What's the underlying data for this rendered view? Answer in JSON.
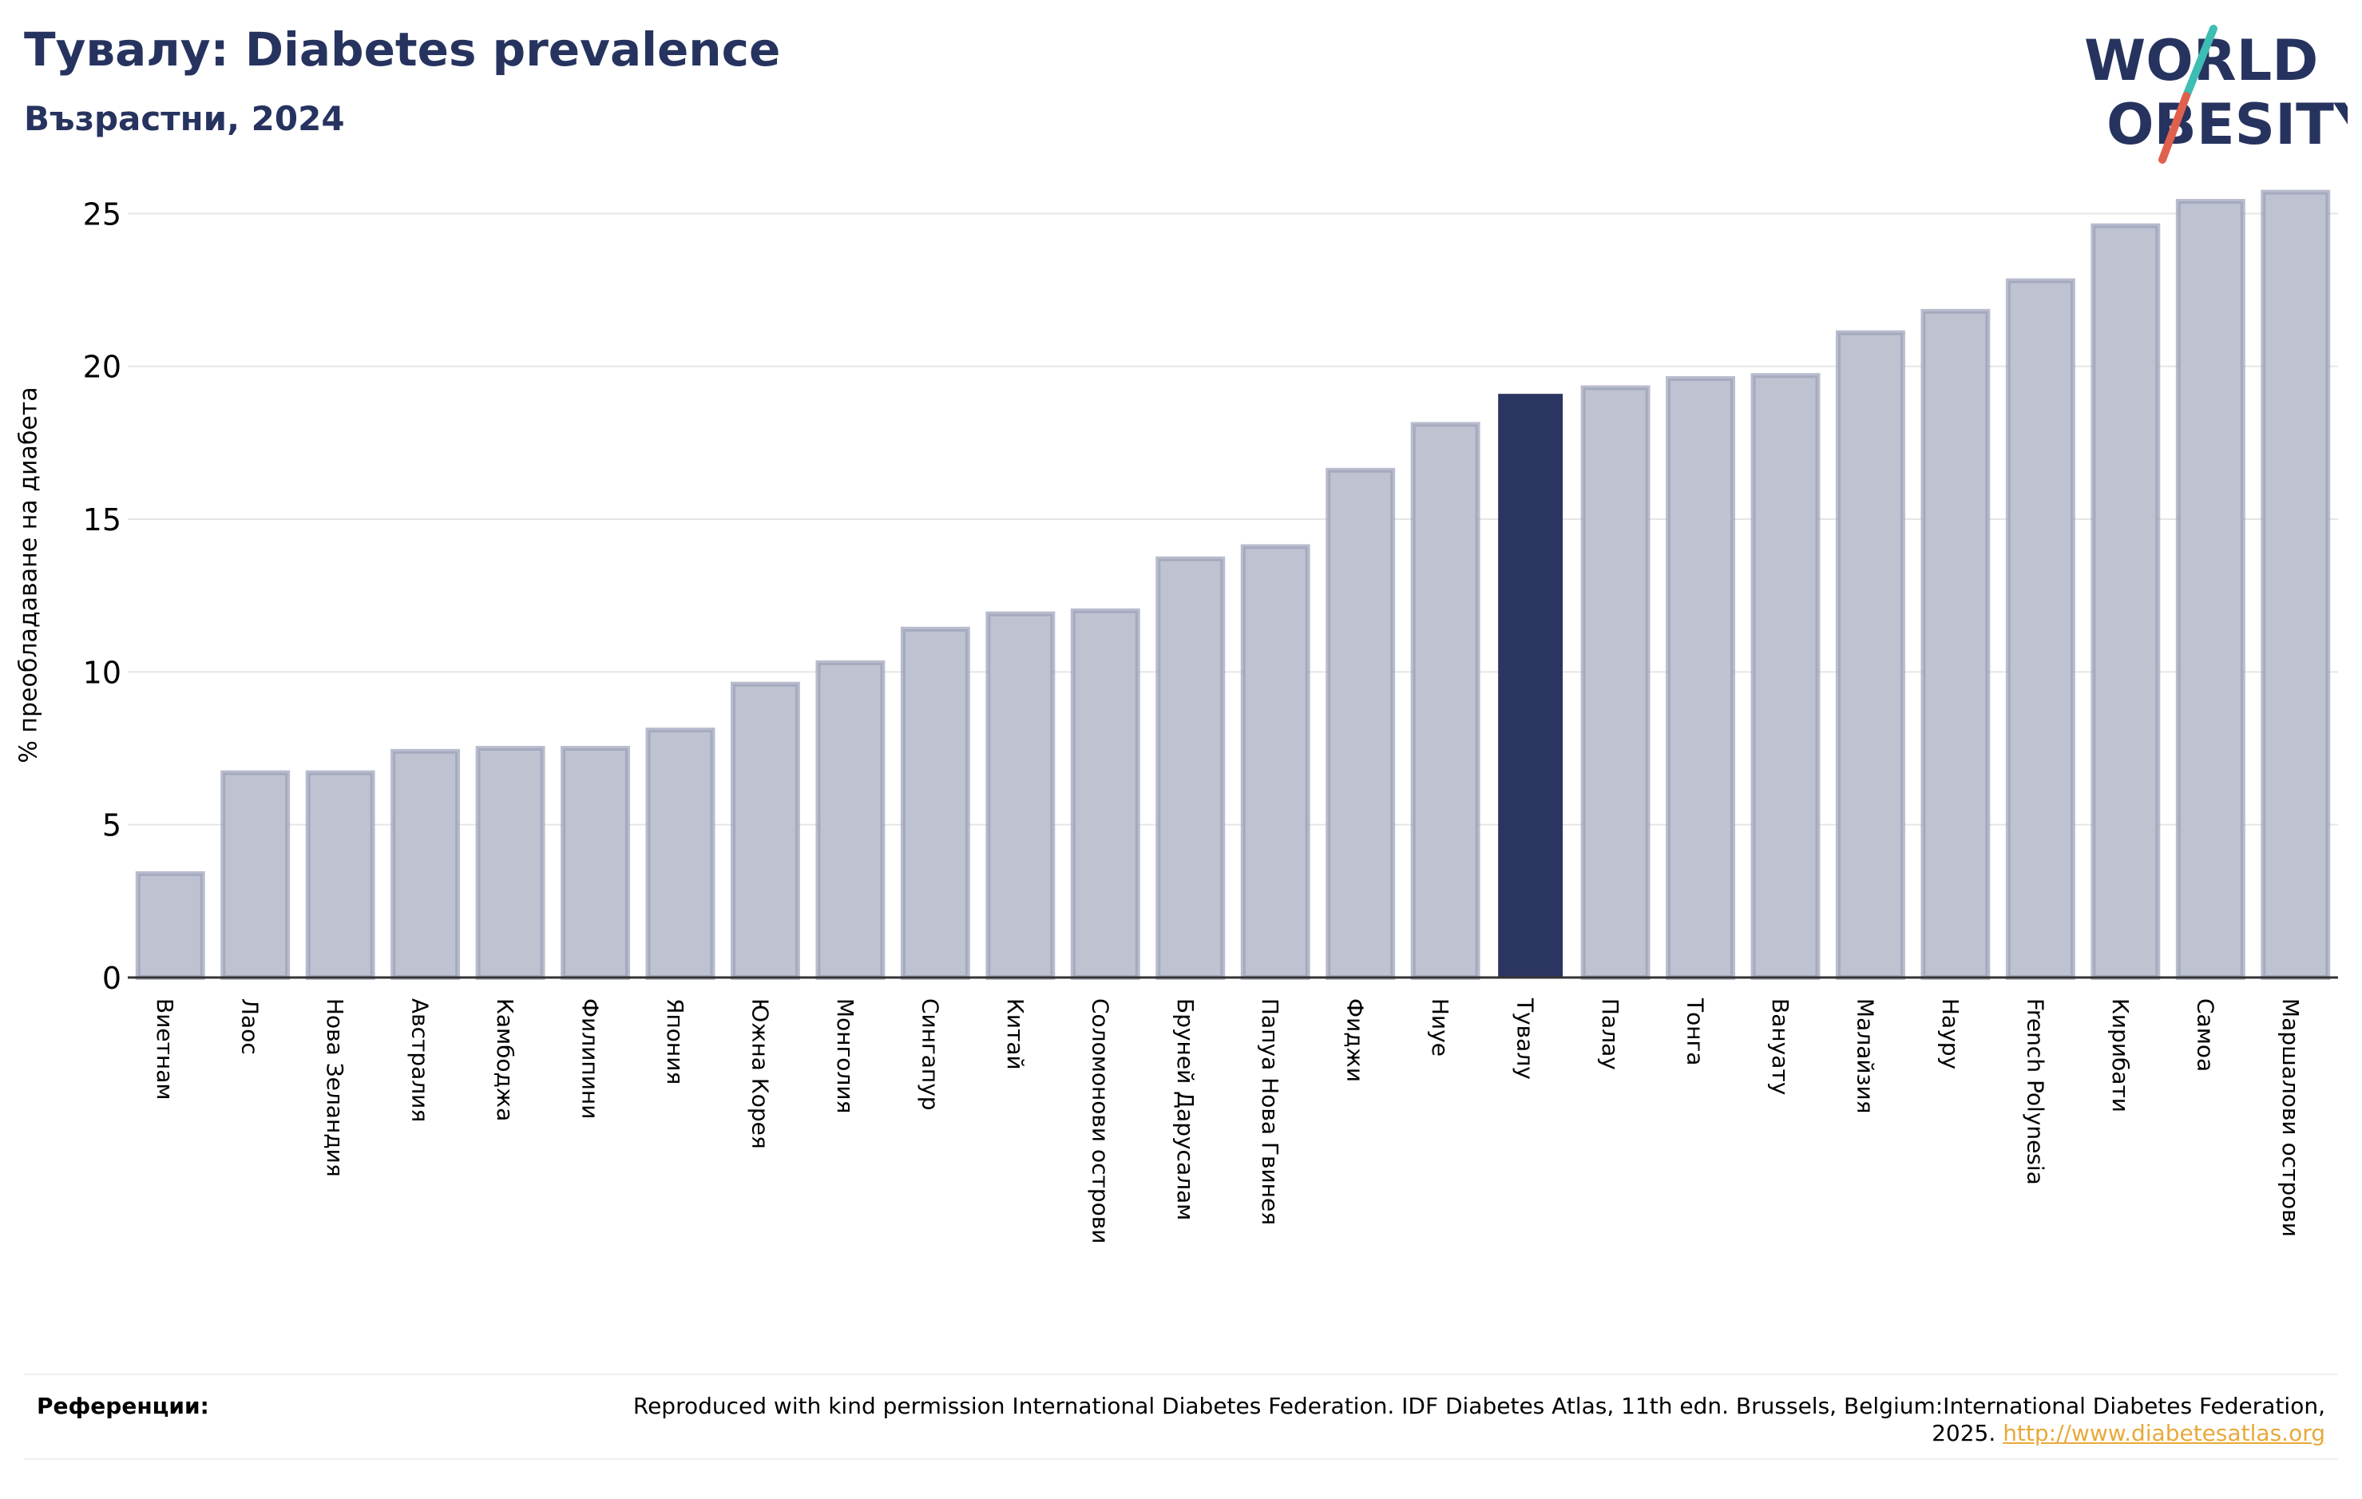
{
  "header": {
    "title": "Тувалу: Diabetes prevalence",
    "subtitle": "Възрастни, 2024"
  },
  "logo": {
    "line1": "WORLD",
    "line2": "OBESITY",
    "colors": {
      "text": "#27335f",
      "slash_top": "#3dbdb3",
      "slash_bottom": "#e0604e"
    }
  },
  "colors": {
    "bar_default": "#bfc2d0",
    "bar_default_edge": "#9aa0b8",
    "bar_highlight": "#2b3561",
    "grid": "#e6e6e6",
    "axis": "#333333"
  },
  "chart_data": {
    "type": "bar",
    "ylabel": "% преобладаване на диабета",
    "xlabel": "",
    "ylim": [
      0,
      26.5
    ],
    "yticks": [
      0,
      5,
      10,
      15,
      20,
      25
    ],
    "grid": true,
    "highlight": "Тувалу",
    "categories": [
      "Виетнам",
      "Лаос",
      "Нова Зеландия",
      "Австралия",
      "Камбоджа",
      "Филипини",
      "Япония",
      "Южна Корея",
      "Монголия",
      "Сингапур",
      "Китай",
      "Соломонови острови",
      "Бруней Дарусалам",
      "Папуа Нова Гвинея",
      "Фиджи",
      "Ниуе",
      "Тувалу",
      "Палау",
      "Тонга",
      "Вануату",
      "Малайзия",
      "Науру",
      "French Polynesia",
      "Кирибати",
      "Самоа",
      "Маршалови острови"
    ],
    "values": [
      3.4,
      6.7,
      6.7,
      7.4,
      7.5,
      7.5,
      8.1,
      9.6,
      10.3,
      11.4,
      11.9,
      12.0,
      13.7,
      14.1,
      16.6,
      18.1,
      19.1,
      19.3,
      19.6,
      19.7,
      21.1,
      21.8,
      22.8,
      24.6,
      25.4,
      25.7
    ]
  },
  "footer": {
    "label": "Референции:",
    "text": "Reproduced with kind permission International Diabetes Federation. IDF Diabetes Atlas, 11th edn. Brussels, Belgium:International Diabetes Federation, 2025.",
    "link": "http://www.diabetesatlas.org"
  }
}
